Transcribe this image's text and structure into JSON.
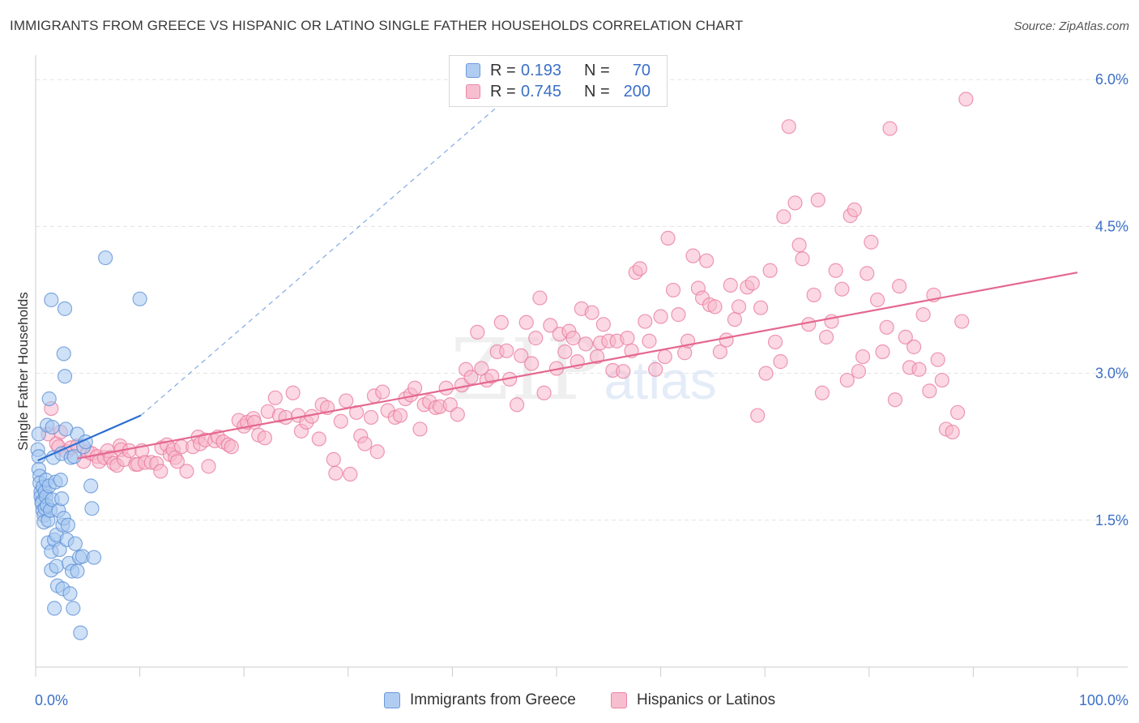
{
  "title": "IMMIGRANTS FROM GREECE VS HISPANIC OR LATINO SINGLE FATHER HOUSEHOLDS CORRELATION CHART",
  "source": "Source: ZipAtlas.com",
  "watermark": {
    "main": "ZIP",
    "sub": "atlas"
  },
  "stats": [
    {
      "r_label": "R =",
      "r_value": "0.193",
      "n_label": "N =",
      "n_value": "70",
      "color": "#a8c8f0"
    },
    {
      "r_label": "R =",
      "r_value": "0.745",
      "n_label": "N =",
      "n_value": "200",
      "color": "#f7b8cc"
    }
  ],
  "legend": [
    {
      "label": "Immigrants from Greece",
      "color": "#a8c8f0"
    },
    {
      "label": "Hispanics or Latinos",
      "color": "#f7b8cc"
    }
  ],
  "colors": {
    "blue_fill": "#a8c8f0",
    "blue_stroke": "#5b8fd6",
    "blue_line": "#2e6fd0",
    "pink_fill": "#f7b8cc",
    "pink_stroke": "#e8789c",
    "pink_line": "#e4688f",
    "tick_label": "#3b6fc7",
    "grid": "#e3e3e3"
  },
  "chart_data": {
    "type": "scatter",
    "title": "IMMIGRANTS FROM GREECE VS HISPANIC OR LATINO SINGLE FATHER HOUSEHOLDS CORRELATION CHART",
    "xlabel": "",
    "ylabel": "Single Father Households",
    "xlim": [
      0,
      100
    ],
    "ylim": [
      0,
      6.25
    ],
    "x_tick_labels": [
      "0.0%",
      "100.0%"
    ],
    "y_ticks": [
      1.5,
      3.0,
      4.5,
      6.0
    ],
    "y_tick_labels": [
      "1.5%",
      "3.0%",
      "4.5%",
      "6.0%"
    ],
    "grid": "horizontal dashed",
    "legend_position": "bottom",
    "series": [
      {
        "name": "Immigrants from Greece",
        "R": 0.193,
        "N": 70,
        "trend_solid": [
          [
            0.2,
            2.11
          ],
          [
            10.1,
            2.57
          ]
        ],
        "trend_dashed": [
          [
            10.1,
            2.57
          ],
          [
            44.5,
            5.74
          ]
        ],
        "points": [
          [
            0.2,
            2.22
          ],
          [
            0.3,
            2.38
          ],
          [
            0.3,
            2.15
          ],
          [
            0.3,
            2.02
          ],
          [
            0.4,
            1.95
          ],
          [
            0.4,
            1.88
          ],
          [
            0.5,
            1.79
          ],
          [
            0.5,
            1.74
          ],
          [
            0.6,
            1.69
          ],
          [
            0.6,
            1.67
          ],
          [
            0.7,
            1.84
          ],
          [
            0.7,
            1.6
          ],
          [
            0.8,
            1.55
          ],
          [
            0.8,
            1.48
          ],
          [
            0.9,
            1.62
          ],
          [
            0.9,
            1.79
          ],
          [
            1.0,
            1.91
          ],
          [
            1.0,
            1.74
          ],
          [
            1.1,
            2.47
          ],
          [
            1.1,
            1.65
          ],
          [
            1.2,
            1.5
          ],
          [
            1.2,
            1.27
          ],
          [
            1.3,
            2.74
          ],
          [
            1.3,
            1.85
          ],
          [
            1.4,
            1.6
          ],
          [
            1.5,
            3.75
          ],
          [
            1.5,
            1.18
          ],
          [
            1.5,
            0.99
          ],
          [
            1.6,
            2.45
          ],
          [
            1.6,
            1.71
          ],
          [
            1.7,
            2.14
          ],
          [
            1.8,
            1.3
          ],
          [
            1.8,
            0.6
          ],
          [
            1.9,
            1.89
          ],
          [
            2.0,
            1.35
          ],
          [
            2.0,
            1.03
          ],
          [
            2.1,
            0.83
          ],
          [
            2.2,
            1.6
          ],
          [
            2.3,
            1.2
          ],
          [
            2.4,
            1.91
          ],
          [
            2.5,
            2.18
          ],
          [
            2.5,
            1.72
          ],
          [
            2.6,
            1.45
          ],
          [
            2.6,
            0.8
          ],
          [
            2.7,
            3.2
          ],
          [
            2.7,
            1.52
          ],
          [
            2.8,
            2.97
          ],
          [
            2.8,
            3.66
          ],
          [
            2.9,
            2.43
          ],
          [
            3.0,
            1.3
          ],
          [
            3.1,
            1.45
          ],
          [
            3.2,
            1.06
          ],
          [
            3.3,
            0.75
          ],
          [
            3.4,
            2.14
          ],
          [
            3.5,
            0.98
          ],
          [
            3.6,
            0.6
          ],
          [
            3.7,
            2.15
          ],
          [
            3.8,
            1.26
          ],
          [
            4.0,
            2.38
          ],
          [
            4.0,
            0.98
          ],
          [
            4.2,
            1.12
          ],
          [
            4.3,
            0.35
          ],
          [
            4.5,
            1.13
          ],
          [
            4.6,
            2.25
          ],
          [
            4.8,
            2.3
          ],
          [
            5.3,
            1.85
          ],
          [
            5.4,
            1.62
          ],
          [
            5.6,
            1.12
          ],
          [
            6.7,
            4.18
          ],
          [
            10.0,
            3.76
          ]
        ]
      },
      {
        "name": "Hispanics or Latinos",
        "R": 0.745,
        "N": 200,
        "trend_solid": [
          [
            4.0,
            2.13
          ],
          [
            100.0,
            4.03
          ]
        ],
        "points": [
          [
            1.2,
            2.38
          ],
          [
            1.5,
            2.64
          ],
          [
            2.0,
            2.28
          ],
          [
            2.2,
            2.25
          ],
          [
            2.4,
            2.4
          ],
          [
            3.0,
            2.2
          ],
          [
            3.4,
            2.24
          ],
          [
            4.0,
            2.26
          ],
          [
            4.6,
            2.1
          ],
          [
            5.0,
            2.2
          ],
          [
            5.4,
            2.18
          ],
          [
            5.9,
            2.15
          ],
          [
            6.1,
            2.1
          ],
          [
            6.6,
            2.14
          ],
          [
            6.9,
            2.21
          ],
          [
            7.2,
            2.14
          ],
          [
            7.5,
            2.08
          ],
          [
            7.8,
            2.06
          ],
          [
            8.1,
            2.26
          ],
          [
            8.2,
            2.22
          ],
          [
            8.5,
            2.12
          ],
          [
            9.0,
            2.21
          ],
          [
            9.6,
            2.07
          ],
          [
            9.8,
            2.07
          ],
          [
            10.2,
            2.21
          ],
          [
            10.5,
            2.09
          ],
          [
            11.1,
            2.09
          ],
          [
            11.6,
            2.08
          ],
          [
            12.0,
            2.0
          ],
          [
            12.1,
            2.24
          ],
          [
            12.6,
            2.27
          ],
          [
            12.9,
            2.17
          ],
          [
            13.2,
            2.22
          ],
          [
            13.4,
            2.14
          ],
          [
            13.6,
            2.1
          ],
          [
            14.0,
            2.25
          ],
          [
            14.5,
            2.0
          ],
          [
            15.1,
            2.25
          ],
          [
            15.6,
            2.35
          ],
          [
            15.8,
            2.28
          ],
          [
            16.3,
            2.32
          ],
          [
            16.6,
            2.05
          ],
          [
            17.2,
            2.31
          ],
          [
            17.5,
            2.35
          ],
          [
            18.0,
            2.3
          ],
          [
            18.5,
            2.27
          ],
          [
            18.8,
            2.25
          ],
          [
            19.5,
            2.52
          ],
          [
            20.0,
            2.46
          ],
          [
            20.3,
            2.5
          ],
          [
            20.9,
            2.54
          ],
          [
            21.0,
            2.5
          ],
          [
            21.4,
            2.37
          ],
          [
            22.0,
            2.34
          ],
          [
            22.3,
            2.61
          ],
          [
            23.0,
            2.75
          ],
          [
            23.4,
            2.57
          ],
          [
            24.0,
            2.55
          ],
          [
            24.7,
            2.8
          ],
          [
            25.2,
            2.57
          ],
          [
            25.5,
            2.41
          ],
          [
            26.0,
            2.5
          ],
          [
            26.5,
            2.56
          ],
          [
            27.2,
            2.33
          ],
          [
            27.5,
            2.68
          ],
          [
            28.0,
            2.65
          ],
          [
            28.6,
            2.12
          ],
          [
            28.8,
            1.98
          ],
          [
            29.3,
            2.51
          ],
          [
            29.8,
            2.72
          ],
          [
            30.2,
            1.97
          ],
          [
            30.8,
            2.6
          ],
          [
            31.2,
            2.36
          ],
          [
            31.6,
            2.28
          ],
          [
            32.2,
            2.55
          ],
          [
            32.5,
            2.77
          ],
          [
            32.8,
            2.2
          ],
          [
            33.3,
            2.81
          ],
          [
            33.8,
            2.62
          ],
          [
            34.5,
            2.55
          ],
          [
            35.0,
            2.57
          ],
          [
            35.5,
            2.74
          ],
          [
            36.0,
            2.78
          ],
          [
            36.4,
            2.85
          ],
          [
            36.9,
            2.43
          ],
          [
            37.3,
            2.68
          ],
          [
            37.8,
            2.71
          ],
          [
            38.4,
            2.65
          ],
          [
            38.8,
            2.66
          ],
          [
            39.4,
            2.85
          ],
          [
            39.8,
            2.68
          ],
          [
            40.5,
            2.58
          ],
          [
            40.9,
            2.88
          ],
          [
            41.3,
            3.04
          ],
          [
            41.8,
            2.96
          ],
          [
            42.4,
            3.42
          ],
          [
            42.8,
            3.05
          ],
          [
            43.3,
            2.93
          ],
          [
            43.8,
            2.97
          ],
          [
            44.3,
            3.22
          ],
          [
            44.7,
            3.52
          ],
          [
            45.2,
            3.23
          ],
          [
            45.5,
            2.94
          ],
          [
            46.2,
            2.68
          ],
          [
            46.6,
            3.18
          ],
          [
            47.1,
            3.52
          ],
          [
            47.6,
            3.1
          ],
          [
            48.0,
            3.36
          ],
          [
            48.4,
            3.77
          ],
          [
            48.8,
            2.8
          ],
          [
            49.4,
            3.49
          ],
          [
            50.0,
            3.05
          ],
          [
            50.3,
            3.4
          ],
          [
            50.8,
            3.22
          ],
          [
            51.2,
            3.43
          ],
          [
            51.6,
            3.36
          ],
          [
            52.0,
            3.12
          ],
          [
            52.4,
            3.66
          ],
          [
            52.8,
            3.3
          ],
          [
            53.4,
            3.62
          ],
          [
            53.9,
            3.17
          ],
          [
            54.2,
            3.31
          ],
          [
            54.5,
            3.5
          ],
          [
            55.0,
            3.33
          ],
          [
            55.4,
            3.03
          ],
          [
            55.8,
            3.33
          ],
          [
            56.4,
            3.02
          ],
          [
            56.8,
            3.36
          ],
          [
            57.2,
            3.23
          ],
          [
            57.6,
            4.03
          ],
          [
            58.0,
            4.07
          ],
          [
            58.5,
            3.53
          ],
          [
            58.9,
            3.33
          ],
          [
            59.5,
            3.04
          ],
          [
            60.0,
            3.58
          ],
          [
            60.4,
            3.17
          ],
          [
            60.7,
            4.38
          ],
          [
            61.2,
            3.85
          ],
          [
            61.7,
            3.6
          ],
          [
            62.3,
            3.21
          ],
          [
            62.6,
            3.33
          ],
          [
            63.1,
            4.2
          ],
          [
            63.6,
            3.87
          ],
          [
            64.0,
            3.77
          ],
          [
            64.4,
            4.15
          ],
          [
            64.7,
            3.7
          ],
          [
            65.2,
            3.68
          ],
          [
            65.7,
            3.22
          ],
          [
            66.3,
            3.34
          ],
          [
            66.7,
            3.9
          ],
          [
            67.1,
            3.55
          ],
          [
            67.5,
            3.68
          ],
          [
            68.3,
            3.88
          ],
          [
            68.8,
            3.92
          ],
          [
            69.3,
            2.57
          ],
          [
            69.6,
            3.67
          ],
          [
            70.1,
            3.0
          ],
          [
            70.5,
            4.05
          ],
          [
            71.0,
            3.32
          ],
          [
            71.5,
            3.12
          ],
          [
            71.8,
            4.6
          ],
          [
            72.3,
            5.52
          ],
          [
            72.9,
            4.74
          ],
          [
            73.3,
            4.31
          ],
          [
            73.6,
            4.17
          ],
          [
            74.2,
            3.5
          ],
          [
            74.7,
            3.8
          ],
          [
            75.1,
            4.77
          ],
          [
            75.5,
            2.8
          ],
          [
            75.9,
            3.37
          ],
          [
            76.4,
            3.53
          ],
          [
            76.8,
            4.05
          ],
          [
            77.4,
            3.86
          ],
          [
            77.9,
            2.93
          ],
          [
            78.2,
            4.61
          ],
          [
            78.6,
            4.67
          ],
          [
            79.0,
            3.02
          ],
          [
            79.4,
            3.17
          ],
          [
            79.8,
            4.02
          ],
          [
            80.2,
            4.34
          ],
          [
            80.8,
            3.75
          ],
          [
            81.3,
            3.22
          ],
          [
            81.7,
            3.47
          ],
          [
            82.0,
            5.5
          ],
          [
            82.5,
            2.73
          ],
          [
            82.9,
            3.89
          ],
          [
            83.5,
            3.37
          ],
          [
            83.9,
            3.06
          ],
          [
            84.3,
            3.27
          ],
          [
            84.8,
            3.04
          ],
          [
            85.2,
            3.6
          ],
          [
            85.8,
            2.82
          ],
          [
            86.2,
            3.8
          ],
          [
            86.6,
            3.14
          ],
          [
            87.0,
            2.93
          ],
          [
            87.4,
            2.43
          ],
          [
            88.0,
            2.4
          ],
          [
            88.5,
            2.6
          ],
          [
            88.9,
            3.53
          ],
          [
            89.3,
            5.8
          ]
        ]
      }
    ]
  }
}
